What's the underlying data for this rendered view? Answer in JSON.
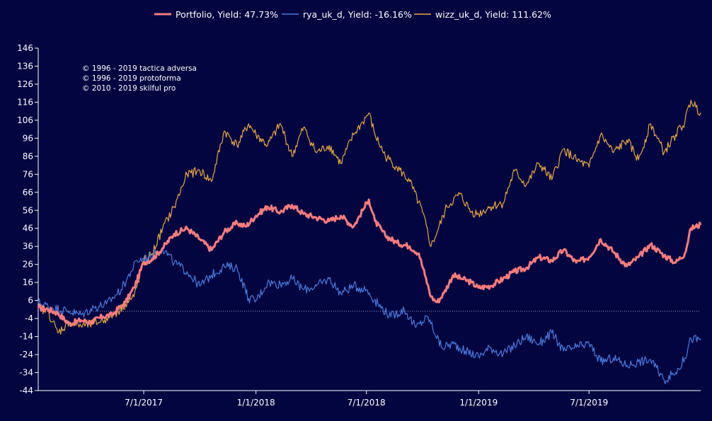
{
  "chart_data": {
    "type": "line",
    "title": "",
    "xlabel": "",
    "ylabel": "",
    "ylim": [
      -44,
      146
    ],
    "y_ticks": [
      146,
      136,
      126,
      116,
      106,
      96,
      86,
      76,
      66,
      56,
      46,
      36,
      26,
      16,
      6,
      -4,
      -14,
      -24,
      -34,
      -44
    ],
    "x_ticks": [
      "7/1/2017",
      "1/1/2018",
      "7/1/2018",
      "1/1/2019",
      "7/1/2019"
    ],
    "x_range": [
      "2017-01-09",
      "2019-12-31"
    ],
    "baseline": 0,
    "legend_position": "top-center",
    "legend": [
      {
        "label": "Portfolio, Yield: 47.73%",
        "color": "#fa7c7c"
      },
      {
        "label": "rya_uk_d, Yield: -16.16%",
        "color": "#4a7bdc"
      },
      {
        "label": "wizz_uk_d, Yield: 111.62%",
        "color": "#e8a640"
      }
    ],
    "copyright": [
      "© 1996 - 2019 tactica adversa",
      "© 1996 - 2019 protoforma",
      "© 2010 - 2019 skilful pro"
    ],
    "series": [
      {
        "name": "Portfolio",
        "color": "#fa7c7c",
        "stroke_width": 3,
        "x": [
          "2017-01-09",
          "2017-01-25",
          "2017-02-10",
          "2017-03-01",
          "2017-03-20",
          "2017-04-05",
          "2017-04-25",
          "2017-05-10",
          "2017-05-25",
          "2017-06-01",
          "2017-06-15",
          "2017-07-01",
          "2017-07-15",
          "2017-08-01",
          "2017-08-20",
          "2017-09-10",
          "2017-10-01",
          "2017-10-20",
          "2017-11-10",
          "2017-12-01",
          "2017-12-15",
          "2018-01-01",
          "2018-01-20",
          "2018-02-10",
          "2018-03-01",
          "2018-03-20",
          "2018-04-10",
          "2018-05-01",
          "2018-05-20",
          "2018-06-10",
          "2018-06-25",
          "2018-07-05",
          "2018-07-15",
          "2018-08-01",
          "2018-08-20",
          "2018-09-10",
          "2018-09-25",
          "2018-10-05",
          "2018-10-15",
          "2018-10-25",
          "2018-11-05",
          "2018-11-20",
          "2018-12-05",
          "2018-12-20",
          "2019-01-01",
          "2019-01-20",
          "2019-02-10",
          "2019-03-01",
          "2019-03-20",
          "2019-04-10",
          "2019-05-01",
          "2019-05-20",
          "2019-06-10",
          "2019-07-01",
          "2019-07-20",
          "2019-08-10",
          "2019-09-01",
          "2019-09-20",
          "2019-10-10",
          "2019-11-01",
          "2019-11-20",
          "2019-12-05",
          "2019-12-15",
          "2019-12-31"
        ],
        "values": [
          2,
          1,
          -1,
          -7,
          -5,
          -6,
          -3,
          -2,
          3,
          5,
          13,
          27,
          29,
          35,
          43,
          46,
          40,
          34,
          44,
          49,
          47,
          53,
          58,
          55,
          59,
          54,
          52,
          50,
          53,
          47,
          56,
          62,
          50,
          42,
          38,
          36,
          32,
          20,
          8,
          5,
          10,
          20,
          18,
          16,
          13,
          14,
          18,
          22,
          24,
          30,
          28,
          34,
          27,
          30,
          40,
          33,
          25,
          30,
          37,
          31,
          27,
          32,
          46,
          48
        ]
      },
      {
        "name": "rya_uk_d",
        "color": "#4a7bdc",
        "stroke_width": 1.2,
        "x": [
          "2017-01-09",
          "2017-02-01",
          "2017-03-01",
          "2017-03-20",
          "2017-04-10",
          "2017-05-01",
          "2017-05-25",
          "2017-06-10",
          "2017-06-20",
          "2017-07-10",
          "2017-08-01",
          "2017-08-20",
          "2017-09-10",
          "2017-10-01",
          "2017-10-20",
          "2017-11-10",
          "2017-12-01",
          "2017-12-20",
          "2018-01-01",
          "2018-01-20",
          "2018-02-10",
          "2018-03-01",
          "2018-03-20",
          "2018-04-10",
          "2018-05-01",
          "2018-05-20",
          "2018-06-10",
          "2018-07-01",
          "2018-07-20",
          "2018-08-10",
          "2018-09-01",
          "2018-09-20",
          "2018-10-10",
          "2018-11-01",
          "2018-11-20",
          "2018-12-10",
          "2019-01-01",
          "2019-01-20",
          "2019-02-10",
          "2019-03-01",
          "2019-03-20",
          "2019-04-10",
          "2019-05-01",
          "2019-05-20",
          "2019-06-10",
          "2019-07-01",
          "2019-07-20",
          "2019-08-10",
          "2019-09-01",
          "2019-09-20",
          "2019-10-10",
          "2019-11-01",
          "2019-11-20",
          "2019-12-05",
          "2019-12-15",
          "2019-12-31"
        ],
        "values": [
          5,
          2,
          0,
          -2,
          2,
          4,
          12,
          22,
          28,
          30,
          35,
          27,
          22,
          14,
          20,
          25,
          24,
          7,
          6,
          16,
          15,
          18,
          12,
          14,
          18,
          10,
          14,
          12,
          4,
          -3,
          1,
          -9,
          -3,
          -20,
          -18,
          -22,
          -25,
          -20,
          -24,
          -19,
          -14,
          -18,
          -12,
          -22,
          -20,
          -18,
          -28,
          -26,
          -30,
          -28,
          -27,
          -38,
          -34,
          -26,
          -15,
          -16
        ]
      },
      {
        "name": "wizz_uk_d",
        "color": "#e8a640",
        "stroke_width": 1.2,
        "x": [
          "2017-01-09",
          "2017-01-25",
          "2017-02-10",
          "2017-03-01",
          "2017-03-20",
          "2017-04-10",
          "2017-05-01",
          "2017-05-20",
          "2017-06-01",
          "2017-06-15",
          "2017-07-01",
          "2017-07-15",
          "2017-08-01",
          "2017-08-20",
          "2017-09-10",
          "2017-10-01",
          "2017-10-20",
          "2017-11-10",
          "2017-12-01",
          "2017-12-20",
          "2018-01-01",
          "2018-01-20",
          "2018-02-10",
          "2018-03-01",
          "2018-03-20",
          "2018-04-10",
          "2018-05-01",
          "2018-05-20",
          "2018-06-10",
          "2018-06-25",
          "2018-07-05",
          "2018-07-15",
          "2018-08-01",
          "2018-08-20",
          "2018-09-10",
          "2018-10-01",
          "2018-10-15",
          "2018-10-25",
          "2018-11-10",
          "2018-12-01",
          "2018-12-20",
          "2019-01-01",
          "2019-01-20",
          "2019-02-10",
          "2019-03-01",
          "2019-03-20",
          "2019-04-10",
          "2019-05-01",
          "2019-05-20",
          "2019-06-10",
          "2019-07-01",
          "2019-07-20",
          "2019-08-10",
          "2019-09-01",
          "2019-09-20",
          "2019-10-10",
          "2019-11-01",
          "2019-11-20",
          "2019-12-05",
          "2019-12-15",
          "2019-12-31"
        ],
        "values": [
          2,
          0,
          -12,
          -6,
          -8,
          -7,
          -4,
          0,
          4,
          8,
          28,
          32,
          46,
          58,
          76,
          78,
          72,
          100,
          92,
          104,
          98,
          92,
          104,
          86,
          102,
          88,
          92,
          82,
          98,
          105,
          110,
          98,
          86,
          80,
          72,
          55,
          36,
          44,
          58,
          65,
          55,
          54,
          58,
          60,
          78,
          70,
          82,
          73,
          90,
          84,
          80,
          98,
          88,
          95,
          84,
          104,
          88,
          98,
          105,
          117,
          110
        ]
      }
    ]
  }
}
